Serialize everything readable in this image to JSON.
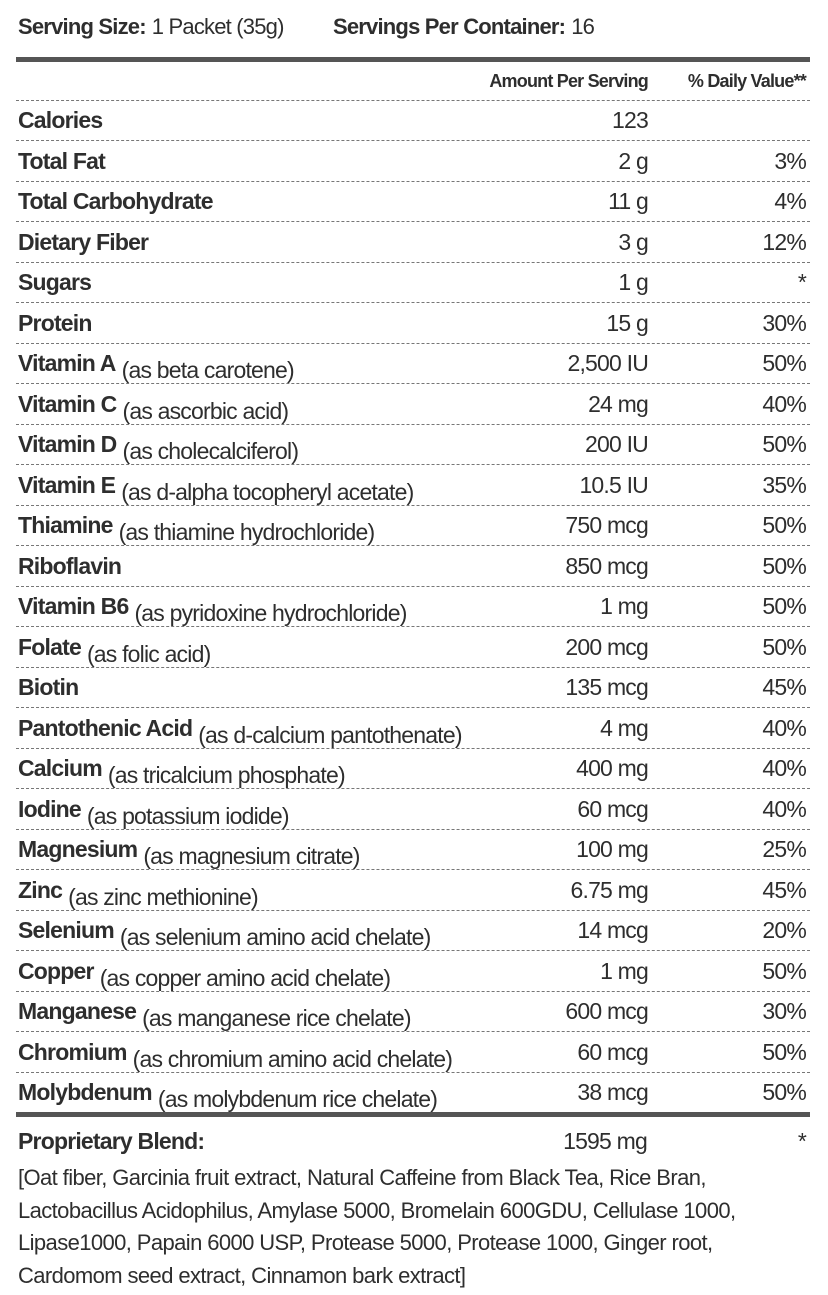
{
  "serving": {
    "size_label": "Serving Size:",
    "size_value": "1 Packet (35g)",
    "servings_label": "Servings Per Container:",
    "servings_value": "16"
  },
  "header": {
    "amount": "Amount Per Serving",
    "dv": "% Daily Value**"
  },
  "rows": [
    {
      "name": "Calories",
      "amount": "123"
    },
    {
      "name": "Total Fat",
      "amount": "2 g",
      "dv": "3%"
    },
    {
      "name": "Total Carbohydrate",
      "amount": "11 g",
      "dv": "4%"
    },
    {
      "name": "Dietary Fiber",
      "amount": "3 g",
      "dv": "12%"
    },
    {
      "name": "Sugars",
      "amount": "1 g",
      "dv": "*"
    },
    {
      "name": "Protein",
      "amount": "15 g",
      "dv": "30%"
    },
    {
      "name": "Vitamin A",
      "note": "(as beta carotene)",
      "amount": "2,500 IU",
      "dv": "50%"
    },
    {
      "name": "Vitamin C",
      "note": "(as ascorbic acid)",
      "amount": "24 mg",
      "dv": "40%"
    },
    {
      "name": "Vitamin D",
      "note": "(as cholecalciferol)",
      "amount": "200 IU",
      "dv": "50%"
    },
    {
      "name": "Vitamin E",
      "note": "(as d-alpha tocopheryl acetate)",
      "amount": "10.5 IU",
      "dv": "35%"
    },
    {
      "name": "Thiamine",
      "note": "(as thiamine hydrochloride)",
      "amount": "750 mcg",
      "dv": "50%"
    },
    {
      "name": "Riboflavin",
      "amount": "850 mcg",
      "dv": "50%"
    },
    {
      "name": "Vitamin B6",
      "note": "(as pyridoxine hydrochloride)",
      "amount": "1 mg",
      "dv": "50%"
    },
    {
      "name": "Folate",
      "note": "(as folic acid)",
      "amount": "200 mcg",
      "dv": "50%"
    },
    {
      "name": "Biotin",
      "amount": "135 mcg",
      "dv": "45%"
    },
    {
      "name": "Pantothenic Acid",
      "note": "(as d-calcium pantothenate)",
      "amount": "4 mg",
      "dv": "40%"
    },
    {
      "name": "Calcium",
      "note": "(as tricalcium phosphate)",
      "amount": "400 mg",
      "dv": "40%"
    },
    {
      "name": "Iodine",
      "note": "(as potassium iodide)",
      "amount": "60 mcg",
      "dv": "40%"
    },
    {
      "name": "Magnesium",
      "note": "(as magnesium citrate)",
      "amount": "100 mg",
      "dv": "25%"
    },
    {
      "name": "Zinc",
      "note": "(as zinc methionine)",
      "amount": "6.75 mg",
      "dv": "45%"
    },
    {
      "name": "Selenium",
      "note": "(as selenium amino acid chelate)",
      "amount": "14 mcg",
      "dv": "20%"
    },
    {
      "name": "Copper",
      "note": "(as copper amino acid chelate)",
      "amount": "1 mg",
      "dv": "50%"
    },
    {
      "name": "Manganese",
      "note": "(as manganese rice chelate)",
      "amount": "600 mcg",
      "dv": "30%"
    },
    {
      "name": "Chromium",
      "note": "(as chromium amino acid chelate)",
      "amount": "60 mcg",
      "dv": "50%"
    },
    {
      "name": "Molybdenum",
      "note": "(as molybdenum rice chelate)",
      "amount": "38 mcg",
      "dv": "50%"
    }
  ],
  "blend": {
    "name": "Proprietary Blend:",
    "amount": "1595 mg",
    "dv": "*",
    "ingredients": "[Oat fiber, Garcinia fruit extract, Natural Caffeine from Black Tea, Rice Bran, Lactobacillus Acidophilus, Amylase 5000, Bromelain 600GDU, Cellulase 1000, Lipase1000, Papain 6000 USP, Protease 5000, Protease 1000, Ginger root, Cardomom seed extract, Cinnamon bark extract]"
  }
}
